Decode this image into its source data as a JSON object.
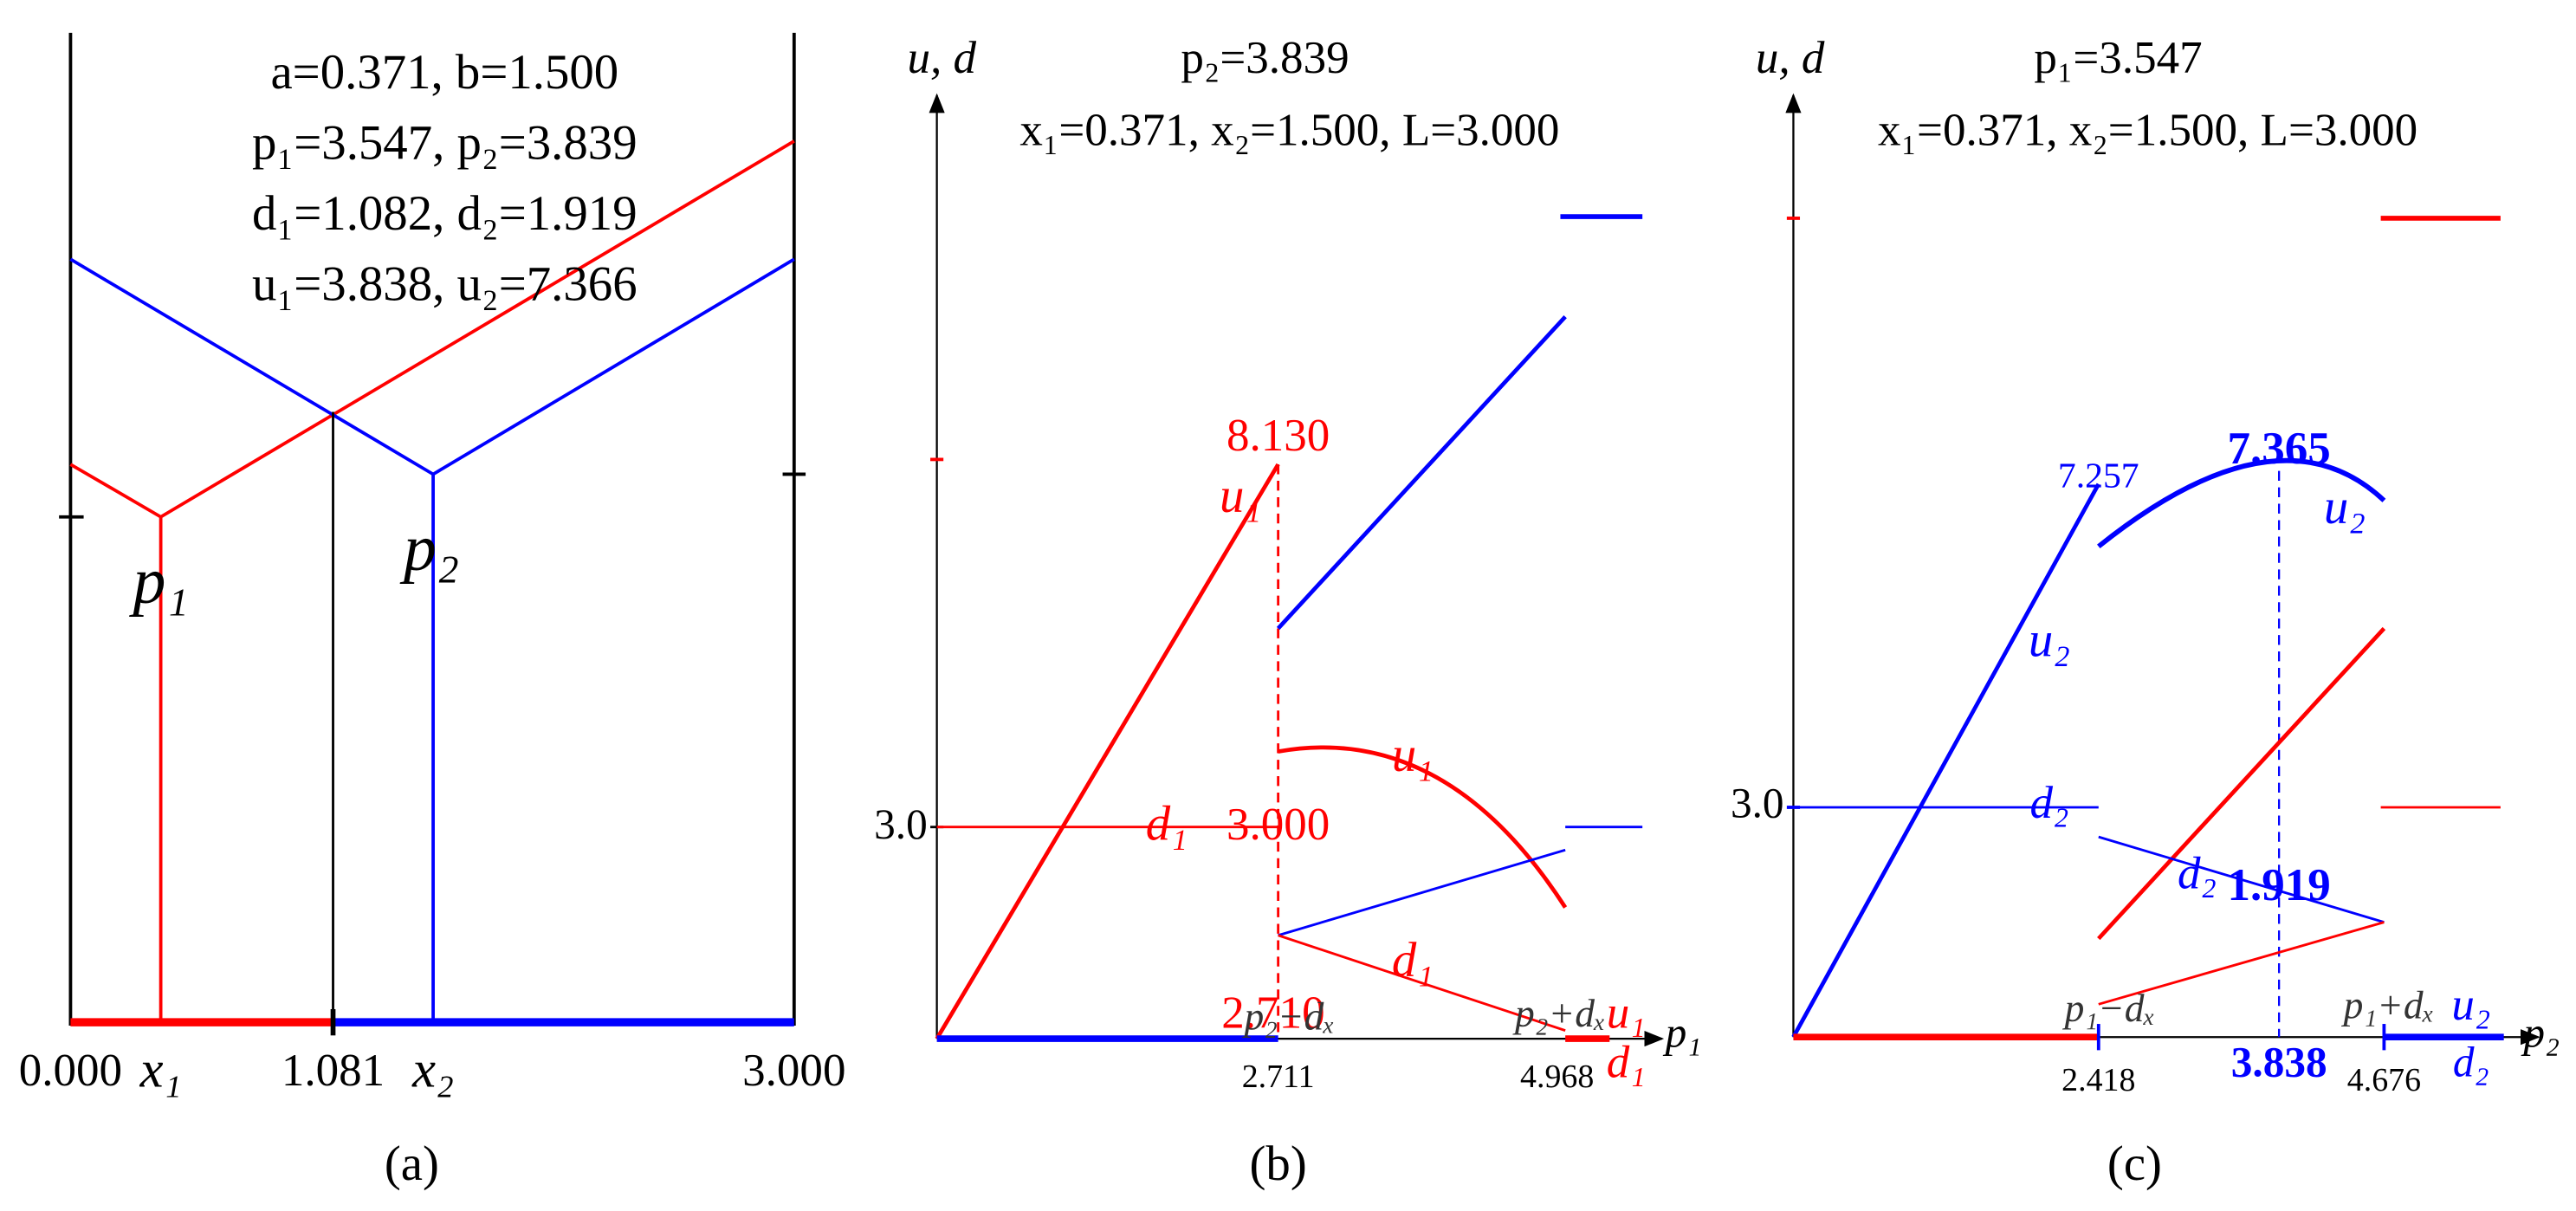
{
  "panels": [
    {
      "title_lines": [
        "a=0.371, b=1.500",
        "p₁=3.547, p₂=3.839",
        "d₁=1.082, d₂=1.919",
        "u₁=3.838, u₂=7.366"
      ],
      "labels": [
        "p₁",
        "p₂",
        "0.000",
        "x₁",
        "1.081",
        "x₂",
        "3.000"
      ],
      "caption": "(a)"
    },
    {
      "axis_label": "u, d",
      "title_lines": [
        "p₂=3.839",
        "x₁=0.371, x₂=1.500, L=3.000"
      ],
      "labels": [
        "8.130",
        "u₁",
        "3.0",
        "d₁",
        "3.000",
        "u₁",
        "d₁",
        "2.710",
        "p₂−dₓ",
        "p₂+dₓ",
        "u₁",
        "d₁",
        "p₁",
        "2.711",
        "4.968"
      ],
      "caption": "(b)"
    },
    {
      "axis_label": "u, d",
      "title_lines": [
        "p₁=3.547",
        "x₁=0.371, x₂=1.500, L=3.000"
      ],
      "labels": [
        "7.257",
        "7.365",
        "u₂",
        "u₂",
        "3.0",
        "d₂",
        "d₂",
        "1.919",
        "p₁−dₓ",
        "p₁+dₓ",
        "u₂",
        "d₂",
        "p₂",
        "2.418",
        "3.838",
        "4.676"
      ],
      "caption": "(c)"
    }
  ]
}
